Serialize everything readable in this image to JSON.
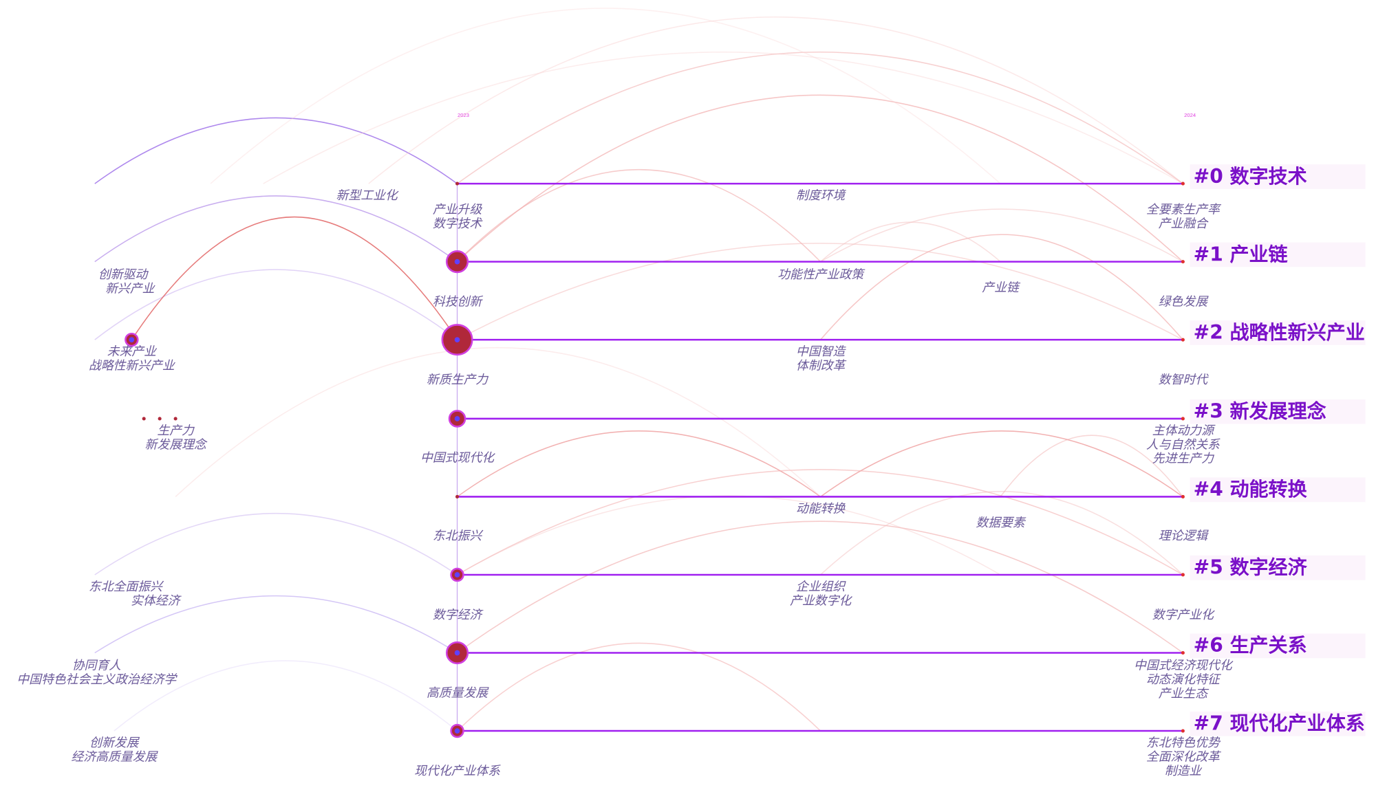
{
  "years": [
    "2023",
    "2024"
  ],
  "clusters": [
    "#0 数字技术",
    "#1 产业链",
    "#2 战略性新兴产业",
    "#3 新发展理念",
    "#4 动能转换",
    "#5 数字经济",
    "#6 生产关系",
    "#7 现代化产业体系"
  ],
  "keywords": [
    {
      "lines": [
        "新型工业化"
      ]
    },
    {
      "lines": [
        "创新驱动",
        "新兴产业"
      ]
    },
    {
      "lines": [
        "未来产业",
        "战略性新兴产业"
      ]
    },
    {
      "lines": [
        "生产力",
        "新发展理念"
      ]
    },
    {
      "lines": [
        "东北全面振兴",
        "实体经济"
      ]
    },
    {
      "lines": [
        "协同育人",
        "中国特色社会主义政治经济学"
      ]
    },
    {
      "lines": [
        "创新发展",
        "经济高质量发展"
      ]
    },
    {
      "lines": [
        "产业升级",
        "数字技术"
      ]
    },
    {
      "lines": [
        "科技创新"
      ]
    },
    {
      "lines": [
        "新质生产力"
      ]
    },
    {
      "lines": [
        "中国式现代化"
      ]
    },
    {
      "lines": [
        "东北振兴"
      ]
    },
    {
      "lines": [
        "数字经济"
      ]
    },
    {
      "lines": [
        "高质量发展"
      ]
    },
    {
      "lines": [
        "现代化产业体系"
      ]
    },
    {
      "lines": [
        "制度环境"
      ]
    },
    {
      "lines": [
        "功能性产业政策"
      ]
    },
    {
      "lines": [
        "中国智造",
        "体制改革"
      ]
    },
    {
      "lines": [
        "动能转换"
      ]
    },
    {
      "lines": [
        "企业组织",
        "产业数字化"
      ]
    },
    {
      "lines": [
        "产业链"
      ]
    },
    {
      "lines": [
        "数据要素"
      ]
    },
    {
      "lines": [
        "全要素生产率",
        "产业融合"
      ]
    },
    {
      "lines": [
        "绿色发展"
      ]
    },
    {
      "lines": [
        "数智时代"
      ]
    },
    {
      "lines": [
        "主体动力源",
        "人与自然关系",
        "先进生产力"
      ]
    },
    {
      "lines": [
        "理论逻辑"
      ]
    },
    {
      "lines": [
        "数字产业化"
      ]
    },
    {
      "lines": [
        "中国式经济现代化",
        "动态演化特征",
        "产业生态"
      ]
    },
    {
      "lines": [
        "东北特色优势",
        "全面深化改革",
        "制造业"
      ]
    }
  ]
}
